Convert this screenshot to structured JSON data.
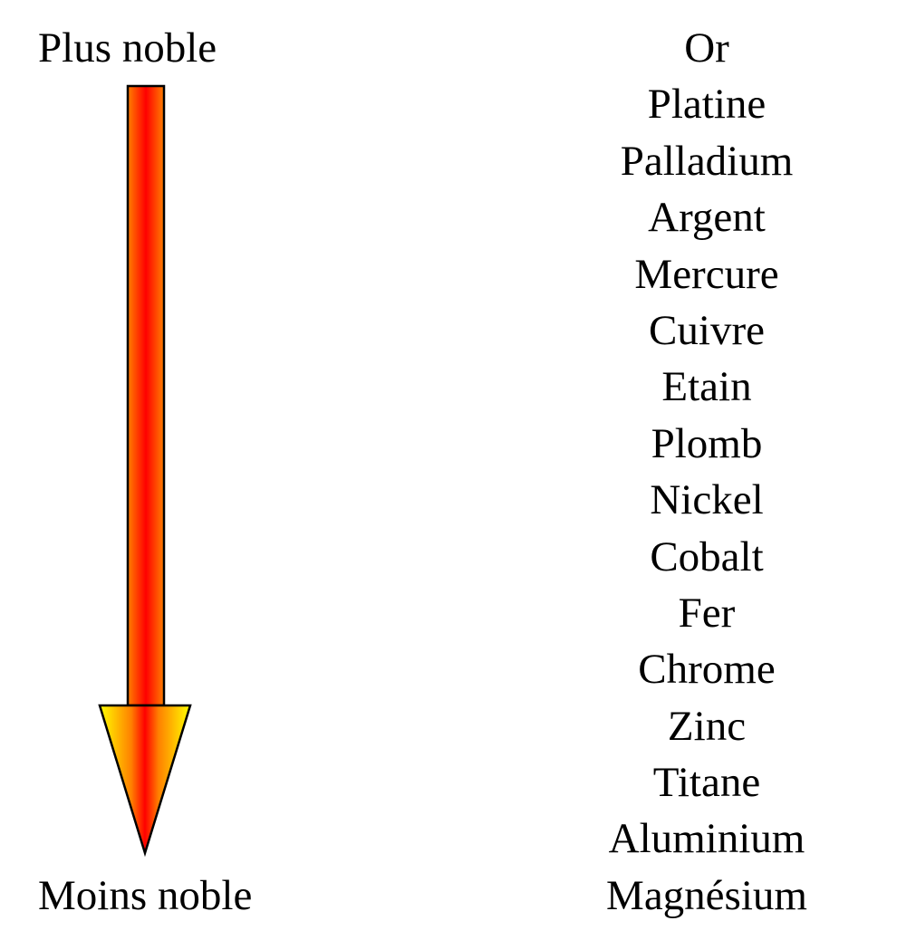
{
  "scale": {
    "top_label": "Plus noble",
    "bottom_label": "Moins noble",
    "direction": "down",
    "arrow_colors": {
      "center": "#ff0000",
      "mid": "#ff8000",
      "edge": "#ffff00",
      "outline": "#000000"
    }
  },
  "metals": [
    {
      "name": "Or"
    },
    {
      "name": "Platine"
    },
    {
      "name": "Palladium"
    },
    {
      "name": "Argent"
    },
    {
      "name": "Mercure"
    },
    {
      "name": "Cuivre"
    },
    {
      "name": "Etain"
    },
    {
      "name": "Plomb"
    },
    {
      "name": "Nickel"
    },
    {
      "name": "Cobalt"
    },
    {
      "name": "Fer"
    },
    {
      "name": "Chrome"
    },
    {
      "name": "Zinc"
    },
    {
      "name": "Titane"
    },
    {
      "name": "Aluminium"
    },
    {
      "name": "Magnésium"
    }
  ]
}
